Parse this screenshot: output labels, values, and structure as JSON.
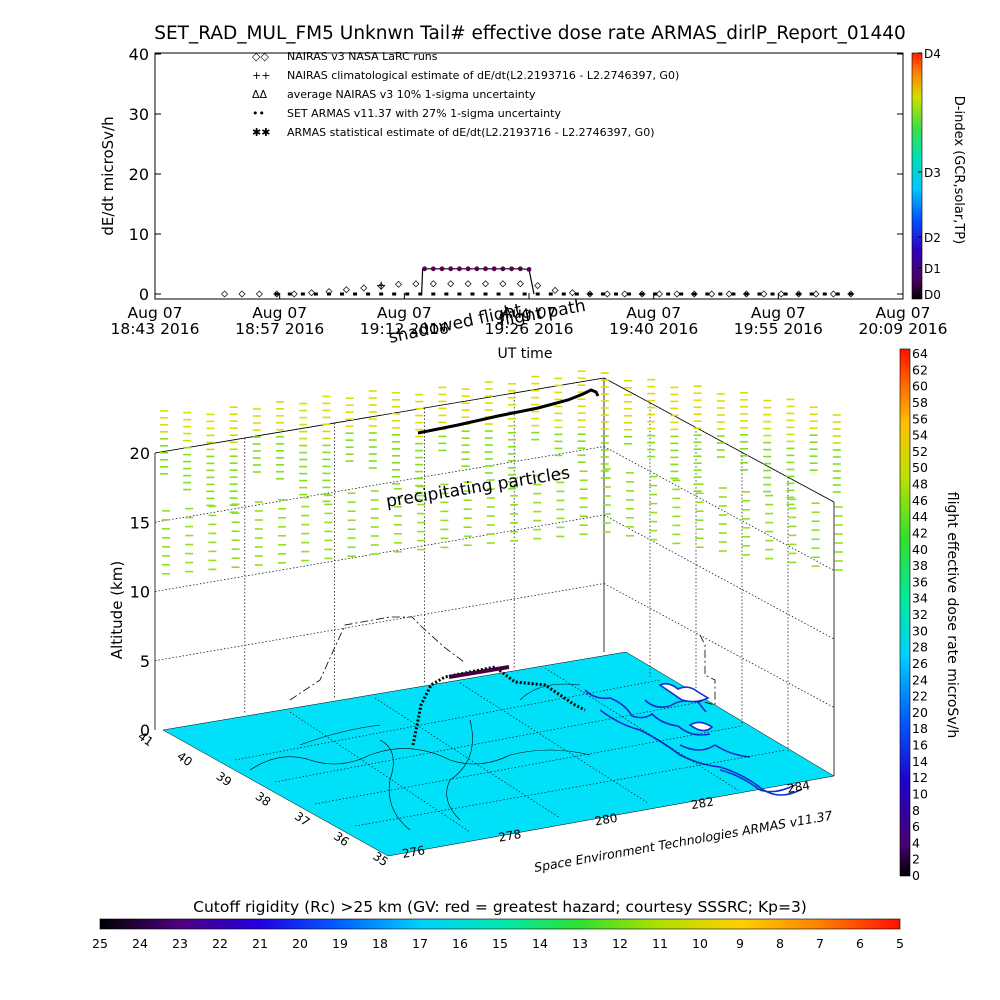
{
  "title": "SET_RAD_MUL_FM5 Unknwn Tail#  effective dose rate ARMAS_dirlP_Report_01440",
  "top_chart": {
    "ylabel": "dE/dt microSv/h",
    "xlabel": "UT time",
    "y_ticks": [
      "0",
      "10",
      "20",
      "30",
      "40"
    ],
    "x_ticks": [
      {
        "l1": "Aug 07",
        "l2": "18:43 2016"
      },
      {
        "l1": "Aug 07",
        "l2": "18:57 2016"
      },
      {
        "l1": "Aug 07",
        "l2": "19:12 2016"
      },
      {
        "l1": "Aug 07",
        "l2": "19:26 2016"
      },
      {
        "l1": "Aug 07",
        "l2": "19:40 2016"
      },
      {
        "l1": "Aug 07",
        "l2": "19:55 2016"
      },
      {
        "l1": "Aug 07",
        "l2": "20:09 2016"
      }
    ],
    "legend": [
      {
        "sym": "◇◇",
        "text": "NAIRAS v3 NASA LaRC runs"
      },
      {
        "sym": "++",
        "text": "NAIRAS climatological estimate of dE/dt(L2.2193716 - L2.2746397, G0)"
      },
      {
        "sym": "ΔΔ",
        "text": "average NAIRAS v3 10% 1-sigma uncertainty"
      },
      {
        "sym": "••",
        "text": "SET ARMAS v11.37 with 27% 1-sigma uncertainty"
      },
      {
        "sym": "✱✱",
        "text": "ARMAS statistical estimate of dE/dt(L2.2193716 - L2.2746397, G0)"
      }
    ]
  },
  "dindex_bar": {
    "label": "D-index (GCR,solar,TP)",
    "ticks": [
      "D4",
      "D3",
      "D2",
      "D1",
      "D0"
    ]
  },
  "dose_bar": {
    "label": "flight effective dose rate microSv/h",
    "ticks": [
      "64",
      "62",
      "60",
      "58",
      "56",
      "54",
      "52",
      "50",
      "48",
      "46",
      "44",
      "42",
      "40",
      "38",
      "36",
      "34",
      "32",
      "30",
      "28",
      "26",
      "24",
      "22",
      "20",
      "18",
      "16",
      "14",
      "12",
      "10",
      "8",
      "6",
      "4",
      "2",
      "0"
    ]
  },
  "panel3d": {
    "zlabel": "Altitude (km)",
    "z_ticks": [
      "0",
      "5",
      "10",
      "15",
      "20"
    ],
    "lat_ticks": [
      "41",
      "40",
      "39",
      "38",
      "37",
      "36",
      "35"
    ],
    "lon_ticks": [
      "276",
      "278",
      "280",
      "282",
      "284"
    ],
    "annotation_precip": "precipitating particles",
    "annotation_flight": "flight path",
    "annotation_shadow": "shadowed flight",
    "credit": "Space Environment Technologies ARMAS v11.37"
  },
  "rc_bar": {
    "caption": "Cutoff rigidity (Rc) >25 km (GV: red = greatest hazard; courtesy SSSRC; Kp=3)",
    "ticks": [
      "25",
      "24",
      "23",
      "22",
      "21",
      "20",
      "19",
      "18",
      "17",
      "16",
      "15",
      "14",
      "13",
      "12",
      "11",
      "10",
      "9",
      "8",
      "7",
      "6",
      "5"
    ]
  },
  "chart_data": {
    "type": "line",
    "title": "SET_RAD_MUL_FM5 Unknwn Tail#  effective dose rate ARMAS_dirlP_Report_01440",
    "xlabel": "UT time",
    "ylabel": "dE/dt microSv/h",
    "ylim": [
      0,
      40
    ],
    "x_range": [
      "18:43",
      "20:09"
    ],
    "series": [
      {
        "name": "SET ARMAS v11.37 with 27% 1-sigma uncertainty",
        "x": [
          "19:14",
          "19:15",
          "19:16",
          "19:17",
          "19:18",
          "19:19",
          "19:20",
          "19:21",
          "19:22",
          "19:23",
          "19:24",
          "19:25",
          "19:26"
        ],
        "values": [
          4.2,
          4.2,
          4.2,
          4.2,
          4.2,
          4.2,
          4.2,
          4.2,
          4.2,
          4.2,
          4.2,
          4.2,
          4.1
        ]
      },
      {
        "name": "NAIRAS v3 NASA LaRC runs",
        "x": [
          "18:51",
          "18:53",
          "18:55",
          "18:57",
          "18:59",
          "19:01",
          "19:03",
          "19:05",
          "19:07",
          "19:09",
          "19:11",
          "19:13",
          "19:15",
          "19:17",
          "19:19",
          "19:21",
          "19:23",
          "19:25",
          "19:27",
          "19:29",
          "19:31",
          "19:33",
          "19:35",
          "19:37",
          "19:39",
          "19:41",
          "19:43",
          "19:45",
          "19:47",
          "19:49",
          "19:51",
          "19:53",
          "19:55",
          "19:57",
          "19:59",
          "20:01",
          "20:03"
        ],
        "values": [
          0,
          0,
          0,
          0,
          0,
          0.2,
          0.4,
          0.7,
          1.0,
          1.3,
          1.6,
          1.7,
          1.7,
          1.7,
          1.7,
          1.7,
          1.7,
          1.7,
          1.4,
          0.6,
          0.2,
          0,
          0,
          0,
          0,
          0,
          0,
          0,
          0,
          0,
          0,
          0,
          0,
          0,
          0,
          0,
          0
        ]
      }
    ]
  }
}
